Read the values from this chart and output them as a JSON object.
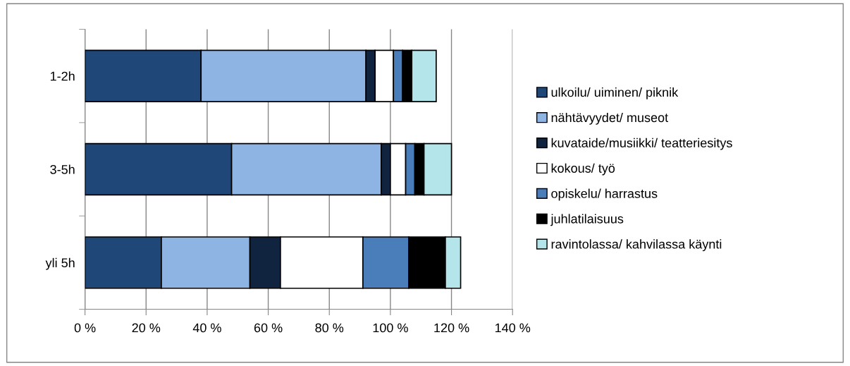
{
  "chart_data": {
    "type": "bar",
    "orientation": "horizontal",
    "stacked": true,
    "categories": [
      "1-2h",
      "3-5h",
      "yli 5h"
    ],
    "series": [
      {
        "name": "ulkoilu/ uiminen/ piknik",
        "color": "#1f4778",
        "values": [
          38,
          48,
          25
        ]
      },
      {
        "name": "nähtävyydet/ museot",
        "color": "#8eb4e3",
        "values": [
          54,
          49,
          29
        ]
      },
      {
        "name": "kuvataide/musiikki/ teatteriesitys",
        "color": "#10243f",
        "values": [
          3,
          3,
          10
        ]
      },
      {
        "name": "kokous/ työ",
        "color": "#ffffff",
        "values": [
          6,
          5,
          27
        ]
      },
      {
        "name": "opiskelu/ harrastus",
        "color": "#4a7ebb",
        "values": [
          3,
          3,
          15
        ]
      },
      {
        "name": "juhlatilaisuus",
        "color": "#000000",
        "values": [
          3,
          3,
          12
        ]
      },
      {
        "name": "ravintolassa/ kahvilassa käynti",
        "color": "#b3e5ea",
        "values": [
          8,
          9,
          5
        ]
      }
    ],
    "xlim": [
      0,
      140
    ],
    "xticks": [
      {
        "value": 0,
        "label": "0 %"
      },
      {
        "value": 20,
        "label": "20 %"
      },
      {
        "value": 40,
        "label": "40 %"
      },
      {
        "value": 60,
        "label": "60 %"
      },
      {
        "value": 80,
        "label": "80 %"
      },
      {
        "value": 100,
        "label": "100 %"
      },
      {
        "value": 120,
        "label": "120 %"
      },
      {
        "value": 140,
        "label": "140 %"
      }
    ],
    "grid": "x",
    "legend": "right"
  }
}
